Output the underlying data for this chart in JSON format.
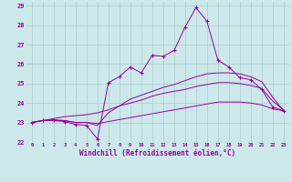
{
  "xlabel": "Windchill (Refroidissement éolien,°C)",
  "bg_color": "#cce8ea",
  "grid_color": "#aacccc",
  "line_color": "#990099",
  "xlim": [
    -0.5,
    23.5
  ],
  "ylim": [
    22,
    29.2
  ],
  "xticks": [
    0,
    1,
    2,
    3,
    4,
    5,
    6,
    7,
    8,
    9,
    10,
    11,
    12,
    13,
    14,
    15,
    16,
    17,
    18,
    19,
    20,
    21,
    22,
    23
  ],
  "yticks": [
    22,
    23,
    24,
    25,
    26,
    27,
    28,
    29
  ],
  "hours": [
    0,
    1,
    2,
    3,
    4,
    5,
    6,
    7,
    8,
    9,
    10,
    11,
    12,
    13,
    14,
    15,
    16,
    17,
    18,
    19,
    20,
    21,
    22,
    23
  ],
  "main_line": [
    23.0,
    23.1,
    23.1,
    23.05,
    22.9,
    22.85,
    22.15,
    25.05,
    25.35,
    25.85,
    25.55,
    26.45,
    26.4,
    26.7,
    27.9,
    28.9,
    28.2,
    26.2,
    25.85,
    25.3,
    25.2,
    24.7,
    23.8,
    23.6
  ],
  "curve2": [
    23.0,
    23.1,
    23.15,
    23.1,
    23.0,
    23.0,
    22.85,
    23.5,
    23.85,
    24.2,
    24.4,
    24.6,
    24.8,
    24.95,
    25.15,
    25.35,
    25.5,
    25.55,
    25.55,
    25.5,
    25.35,
    25.1,
    24.3,
    23.6
  ],
  "curve3": [
    23.0,
    23.1,
    23.2,
    23.3,
    23.35,
    23.4,
    23.5,
    23.65,
    23.85,
    24.0,
    24.15,
    24.35,
    24.5,
    24.6,
    24.7,
    24.85,
    24.95,
    25.05,
    25.05,
    25.0,
    24.9,
    24.75,
    24.1,
    23.65
  ],
  "curve4": [
    23.0,
    23.1,
    23.1,
    23.1,
    23.0,
    23.0,
    22.95,
    23.05,
    23.15,
    23.25,
    23.35,
    23.45,
    23.55,
    23.65,
    23.75,
    23.85,
    23.95,
    24.05,
    24.05,
    24.05,
    24.0,
    23.9,
    23.7,
    23.6
  ]
}
